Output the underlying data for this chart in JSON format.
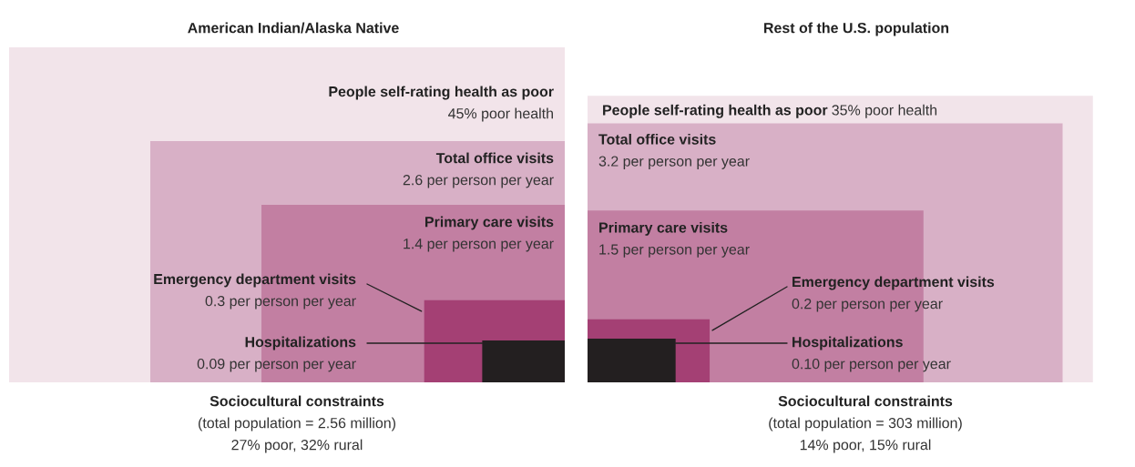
{
  "chart_data": [
    {
      "type": "other",
      "title": "American Indian/Alaska Native",
      "categories": [
        "People self-rating health as poor",
        "Total office visits",
        "Primary care visits",
        "Emergency department visits",
        "Hospitalizations"
      ],
      "values": [
        45,
        2.6,
        1.4,
        0.3,
        0.09
      ],
      "value_labels": [
        "45% poor health",
        "2.6 per person per year",
        "1.4 per person per year",
        "0.3 per person per year",
        "0.09 per person per year"
      ],
      "colors": [
        "#f2e4ea",
        "#d8b0c6",
        "#c27fa2",
        "#a44074",
        "#231f20"
      ],
      "annotations": [
        "Sociocultural constraints",
        "(total population = 2.56 million)",
        "27% poor, 32% rural"
      ]
    },
    {
      "type": "other",
      "title": "Rest of the U.S. population",
      "categories": [
        "People self-rating health as poor",
        "Total office visits",
        "Primary care visits",
        "Emergency department visits",
        "Hospitalizations"
      ],
      "values": [
        35,
        3.2,
        1.5,
        0.2,
        0.1
      ],
      "value_labels": [
        "35% poor health",
        "3.2 per person per year",
        "1.5 per person per year",
        "0.2 per person per year",
        "0.10 per person per year"
      ],
      "colors": [
        "#f2e4ea",
        "#d8b0c6",
        "#c27fa2",
        "#a44074",
        "#231f20"
      ],
      "annotations": [
        "Sociocultural constraints",
        "(total population = 303 million)",
        "14% poor, 15% rural"
      ]
    }
  ]
}
